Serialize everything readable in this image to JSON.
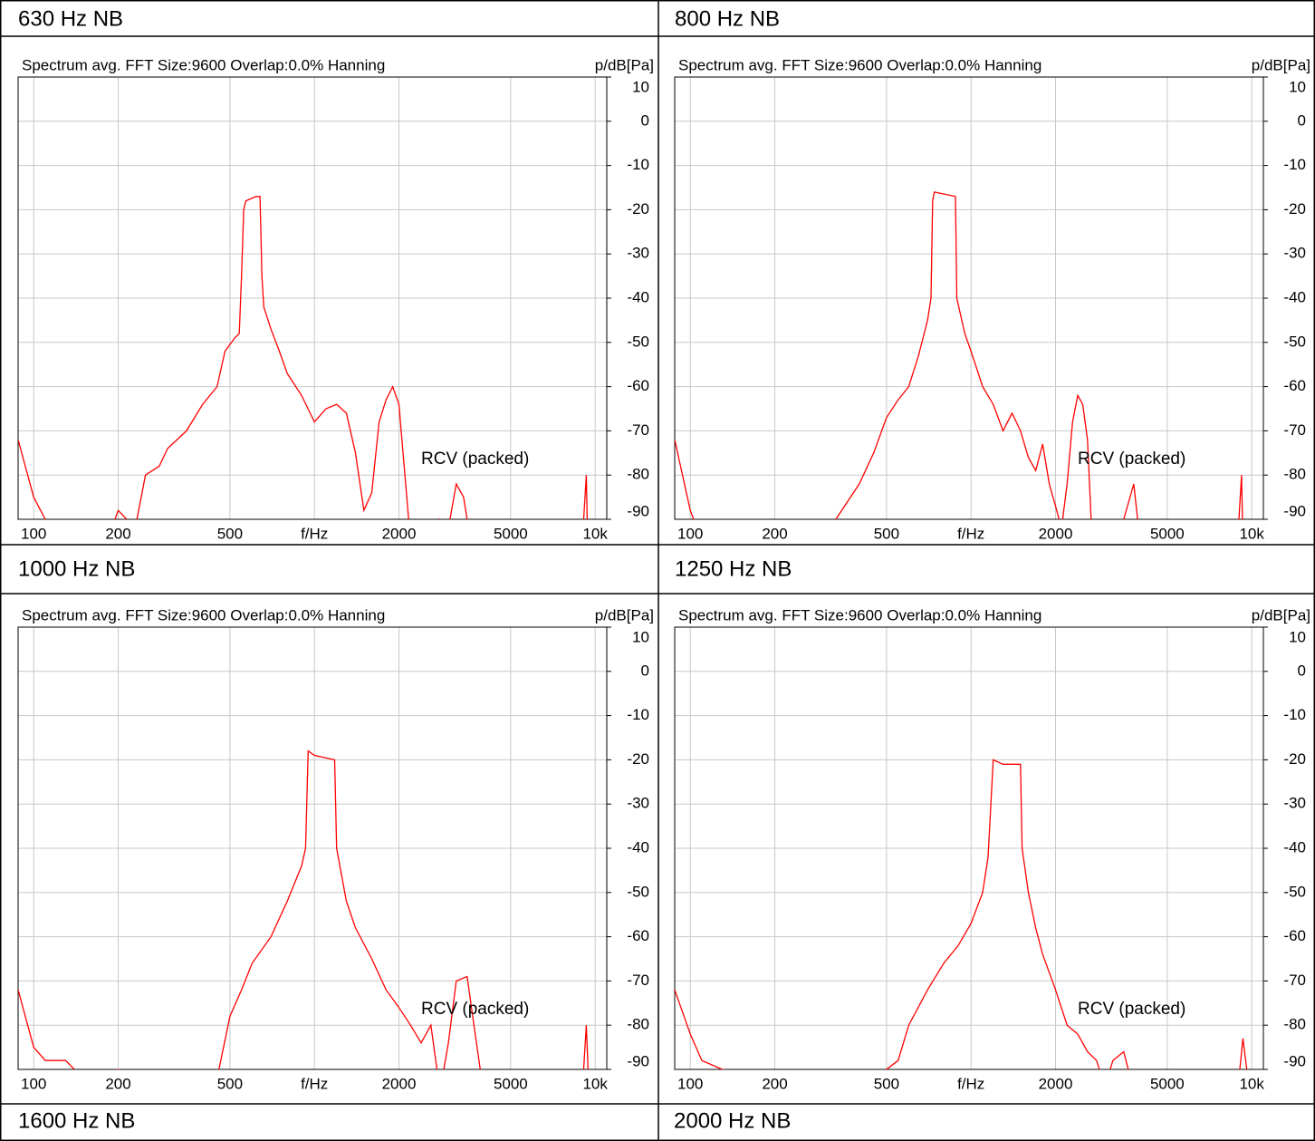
{
  "chart_data": [
    {
      "type": "line",
      "title": "630 Hz NB",
      "subtitle": "Spectrum avg.  FFT Size:9600  Overlap:0.0%  Hanning",
      "ylabel": "p/dB[Pa]",
      "annotation": "RCV (packed)",
      "xscale": "log",
      "xlim": [
        88,
        11000
      ],
      "ylim": [
        -90,
        10
      ],
      "xticks": [
        100,
        200,
        500,
        {
          "value": 1000,
          "label": "f/Hz"
        },
        2000,
        5000,
        {
          "value": 10000,
          "label": "10k"
        }
      ],
      "yticks": [
        10,
        0,
        -10,
        -20,
        -30,
        -40,
        -50,
        -60,
        -70,
        -80,
        -90
      ],
      "grid": true,
      "series": [
        {
          "color": "#ff0000",
          "x": [
            88,
            100,
            110,
            120,
            190,
            200,
            230,
            250,
            280,
            300,
            350,
            400,
            450,
            480,
            520,
            540,
            550,
            560,
            570,
            620,
            640,
            650,
            660,
            700,
            750,
            800,
            900,
            1000,
            1100,
            1200,
            1300,
            1400,
            1500,
            1600,
            1700,
            1800,
            1900,
            2000,
            2100,
            2200,
            2700,
            2800,
            3000,
            3200,
            3400,
            3600,
            9000,
            9300,
            9400
          ],
          "values": [
            -72,
            -85,
            -90,
            -92,
            -92,
            -88,
            -92,
            -80,
            -78,
            -74,
            -70,
            -64,
            -60,
            -52,
            -49,
            -48,
            -35,
            -20,
            -18,
            -17,
            -17,
            -35,
            -42,
            -47,
            -52,
            -57,
            -62,
            -68,
            -65,
            -64,
            -66,
            -75,
            -88,
            -84,
            -68,
            -63,
            -60,
            -64,
            -80,
            -95,
            -95,
            -90,
            -92,
            -82,
            -85,
            -95,
            -95,
            -80,
            -95
          ]
        }
      ]
    },
    {
      "type": "line",
      "title": "800 Hz NB",
      "subtitle": "Spectrum avg.  FFT Size:9600  Overlap:0.0%  Hanning",
      "ylabel": "p/dB[Pa]",
      "annotation": "RCV (packed)",
      "xscale": "log",
      "xlim": [
        88,
        11000
      ],
      "ylim": [
        -90,
        10
      ],
      "xticks": [
        100,
        200,
        500,
        {
          "value": 1000,
          "label": "f/Hz"
        },
        2000,
        5000,
        {
          "value": 10000,
          "label": "10k"
        }
      ],
      "yticks": [
        10,
        0,
        -10,
        -20,
        -30,
        -40,
        -50,
        -60,
        -70,
        -80,
        -90
      ],
      "grid": true,
      "series": [
        {
          "color": "#ff0000",
          "x": [
            88,
            100,
            110,
            200,
            300,
            330,
            400,
            450,
            500,
            550,
            600,
            650,
            700,
            720,
            730,
            740,
            880,
            890,
            950,
            1000,
            1100,
            1200,
            1300,
            1400,
            1500,
            1600,
            1700,
            1800,
            1900,
            2000,
            2100,
            2200,
            2300,
            2400,
            2500,
            2600,
            2700,
            3000,
            3500,
            3800,
            4000,
            9000,
            9200,
            9300
          ],
          "values": [
            -72,
            -88,
            -95,
            -92,
            -95,
            -90,
            -82,
            -75,
            -67,
            -63,
            -60,
            -53,
            -45,
            -40,
            -18,
            -16,
            -17,
            -40,
            -48,
            -52,
            -60,
            -64,
            -70,
            -66,
            -70,
            -76,
            -79,
            -73,
            -82,
            -87,
            -92,
            -82,
            -68,
            -62,
            -64,
            -72,
            -95,
            -92,
            -90,
            -82,
            -95,
            -90,
            -80,
            -95
          ]
        }
      ]
    },
    {
      "type": "line",
      "title": "1000 Hz NB",
      "subtitle": "Spectrum avg.  FFT Size:9600  Overlap:0.0%  Hanning",
      "ylabel": "p/dB[Pa]",
      "annotation": "RCV (packed)",
      "xscale": "log",
      "xlim": [
        88,
        11000
      ],
      "ylim": [
        -90,
        10
      ],
      "xticks": [
        100,
        200,
        500,
        {
          "value": 1000,
          "label": "f/Hz"
        },
        2000,
        5000,
        {
          "value": 10000,
          "label": "10k"
        }
      ],
      "yticks": [
        10,
        0,
        -10,
        -20,
        -30,
        -40,
        -50,
        -60,
        -70,
        -80,
        -90
      ],
      "grid": true,
      "series": [
        {
          "color": "#ff0000",
          "x": [
            88,
            100,
            110,
            130,
            150,
            200,
            420,
            450,
            500,
            550,
            600,
            700,
            800,
            900,
            930,
            950,
            1000,
            1180,
            1200,
            1300,
            1400,
            1600,
            1800,
            2000,
            2200,
            2400,
            2600,
            2800,
            3000,
            3200,
            3500,
            3700,
            4000,
            9000,
            9300,
            9500
          ],
          "values": [
            -72,
            -85,
            -88,
            -88,
            -92,
            -90,
            -95,
            -92,
            -78,
            -72,
            -66,
            -60,
            -52,
            -44,
            -40,
            -18,
            -19,
            -20,
            -40,
            -52,
            -58,
            -65,
            -72,
            -76,
            -80,
            -84,
            -80,
            -95,
            -84,
            -70,
            -69,
            -80,
            -95,
            -95,
            -80,
            -95
          ]
        }
      ]
    },
    {
      "type": "line",
      "title": "1250 Hz NB",
      "subtitle": "Spectrum avg.  FFT Size:9600  Overlap:0.0%  Hanning",
      "ylabel": "p/dB[Pa]",
      "annotation": "RCV (packed)",
      "xscale": "log",
      "xlim": [
        88,
        11000
      ],
      "ylim": [
        -90,
        10
      ],
      "xticks": [
        100,
        200,
        500,
        {
          "value": 1000,
          "label": "f/Hz"
        },
        2000,
        5000,
        {
          "value": 10000,
          "label": "10k"
        }
      ],
      "yticks": [
        10,
        0,
        -10,
        -20,
        -30,
        -40,
        -50,
        -60,
        -70,
        -80,
        -90
      ],
      "grid": true,
      "series": [
        {
          "color": "#ff0000",
          "x": [
            88,
            100,
            110,
            130,
            200,
            450,
            500,
            550,
            600,
            700,
            800,
            900,
            1000,
            1100,
            1150,
            1200,
            1300,
            1500,
            1520,
            1600,
            1700,
            1800,
            2000,
            2200,
            2400,
            2600,
            2800,
            3000,
            3200,
            3500,
            3700,
            4000,
            9000,
            9300,
            9600,
            10000
          ],
          "values": [
            -72,
            -82,
            -88,
            -90,
            -92,
            -95,
            -90,
            -88,
            -80,
            -72,
            -66,
            -62,
            -57,
            -50,
            -42,
            -20,
            -21,
            -21,
            -40,
            -50,
            -58,
            -64,
            -72,
            -80,
            -82,
            -86,
            -88,
            -94,
            -88,
            -86,
            -92,
            -95,
            -92,
            -83,
            -90,
            -95
          ]
        }
      ]
    }
  ],
  "footer_labels": [
    "1600 Hz NB",
    "2000 Hz NB"
  ]
}
